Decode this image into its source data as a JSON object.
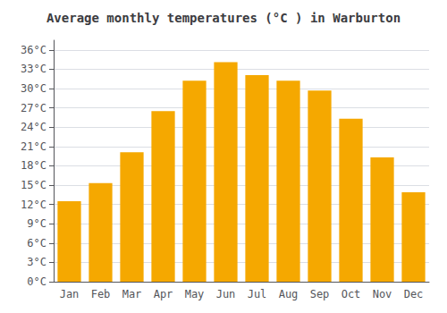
{
  "chart_data": {
    "type": "bar",
    "title": "Average monthly temperatures (°C ) in Warburton",
    "categories": [
      "Jan",
      "Feb",
      "Mar",
      "Apr",
      "May",
      "Jun",
      "Jul",
      "Aug",
      "Sep",
      "Oct",
      "Nov",
      "Dec"
    ],
    "values": [
      12.5,
      15.3,
      20.1,
      26.5,
      31.2,
      34.1,
      32.1,
      31.2,
      29.7,
      25.3,
      19.3,
      13.9
    ],
    "color": "#F5A800",
    "ylim": [
      0,
      37.5
    ],
    "yticks": [
      {
        "value": 0,
        "label": "0°C"
      },
      {
        "value": 3,
        "label": "3°C"
      },
      {
        "value": 6,
        "label": "6°C"
      },
      {
        "value": 9,
        "label": "9°C"
      },
      {
        "value": 12,
        "label": "12°C"
      },
      {
        "value": 15,
        "label": "15°C"
      },
      {
        "value": 18,
        "label": "18°C"
      },
      {
        "value": 21,
        "label": "21°C"
      },
      {
        "value": 24,
        "label": "24°C"
      },
      {
        "value": 27,
        "label": "27°C"
      },
      {
        "value": 30,
        "label": "30°C"
      },
      {
        "value": 33,
        "label": "33°C"
      },
      {
        "value": 36,
        "label": "36°C"
      }
    ],
    "grid": true
  }
}
